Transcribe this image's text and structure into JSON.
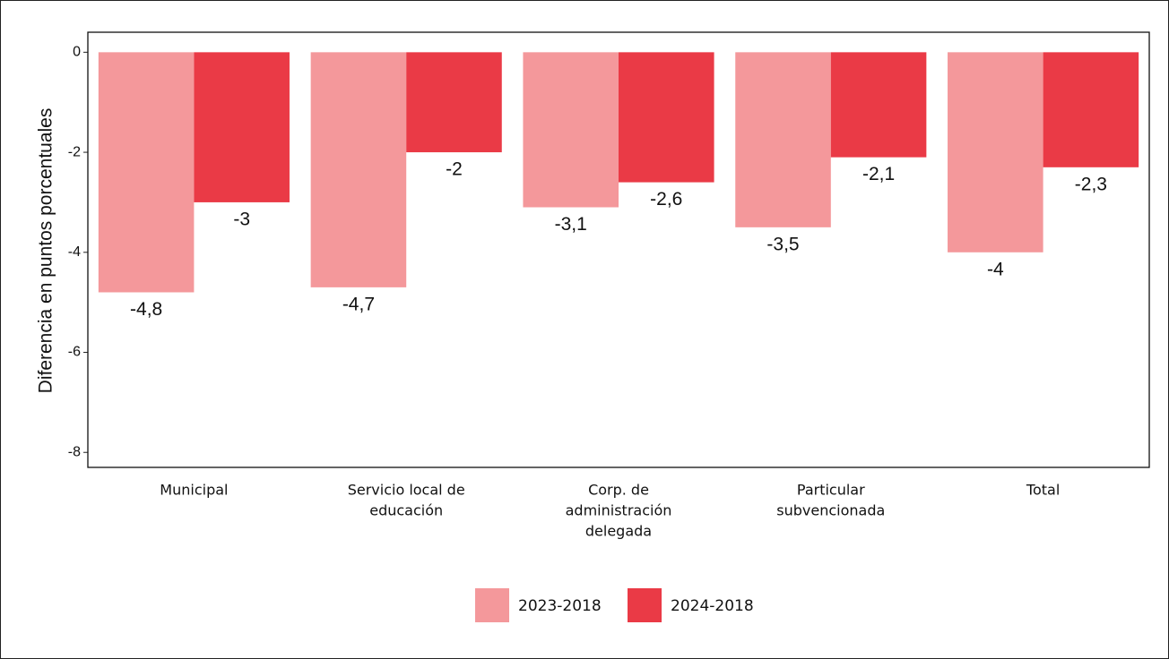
{
  "chart_data": {
    "type": "bar",
    "y_label": "Diferencia en puntos porcentuales",
    "categories": [
      [
        "Municipal"
      ],
      [
        "Servicio local de",
        "educación"
      ],
      [
        "Corp. de",
        "administración",
        "delegada"
      ],
      [
        "Particular",
        "subvencionada"
      ],
      [
        "Total"
      ]
    ],
    "series": [
      {
        "name": "2023-2018",
        "color": "#f4989b",
        "values": [
          -4.8,
          -4.7,
          -3.1,
          -3.5,
          -4
        ],
        "value_labels": [
          "-4,8",
          "-4,7",
          "-3,1",
          "-3,5",
          "-4"
        ]
      },
      {
        "name": "2024-2018",
        "color": "#ea3a46",
        "values": [
          -3,
          -2,
          -2.6,
          -2.1,
          -2.3
        ],
        "value_labels": [
          "-3",
          "-2",
          "-2,6",
          "-2,1",
          "-2,3"
        ]
      }
    ],
    "ylim": [
      -8.3,
      0.4
    ],
    "yticks": [
      -8,
      -6,
      -4,
      -2,
      0
    ],
    "grid": false,
    "legend": "bottom"
  }
}
